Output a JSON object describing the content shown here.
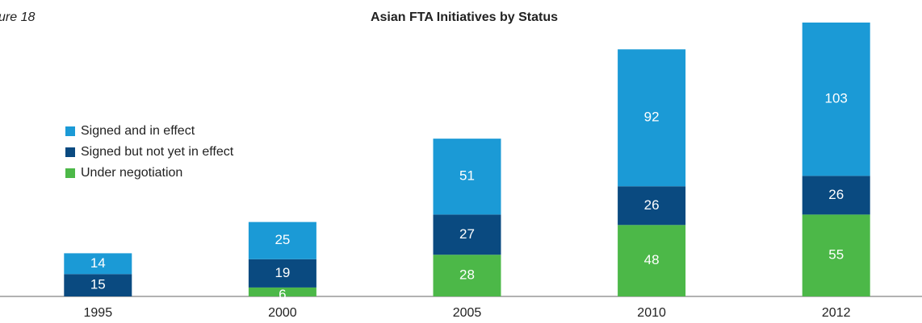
{
  "chart_data": {
    "type": "stacked_bar",
    "title": "Asian FTA Initiatives by Status",
    "figure_label": "ure 18",
    "categories": [
      "1995",
      "2000",
      "2005",
      "2010",
      "2012"
    ],
    "series": [
      {
        "name": "Under negotiation",
        "color": "#4cb848",
        "values": [
          null,
          6,
          28,
          48,
          55
        ]
      },
      {
        "name": "Signed but not yet in effect",
        "color": "#0a4a80",
        "values": [
          15,
          19,
          27,
          26,
          26
        ]
      },
      {
        "name": "Signed and in effect",
        "color": "#1b9ad6",
        "values": [
          14,
          25,
          51,
          92,
          103
        ]
      }
    ]
  }
}
